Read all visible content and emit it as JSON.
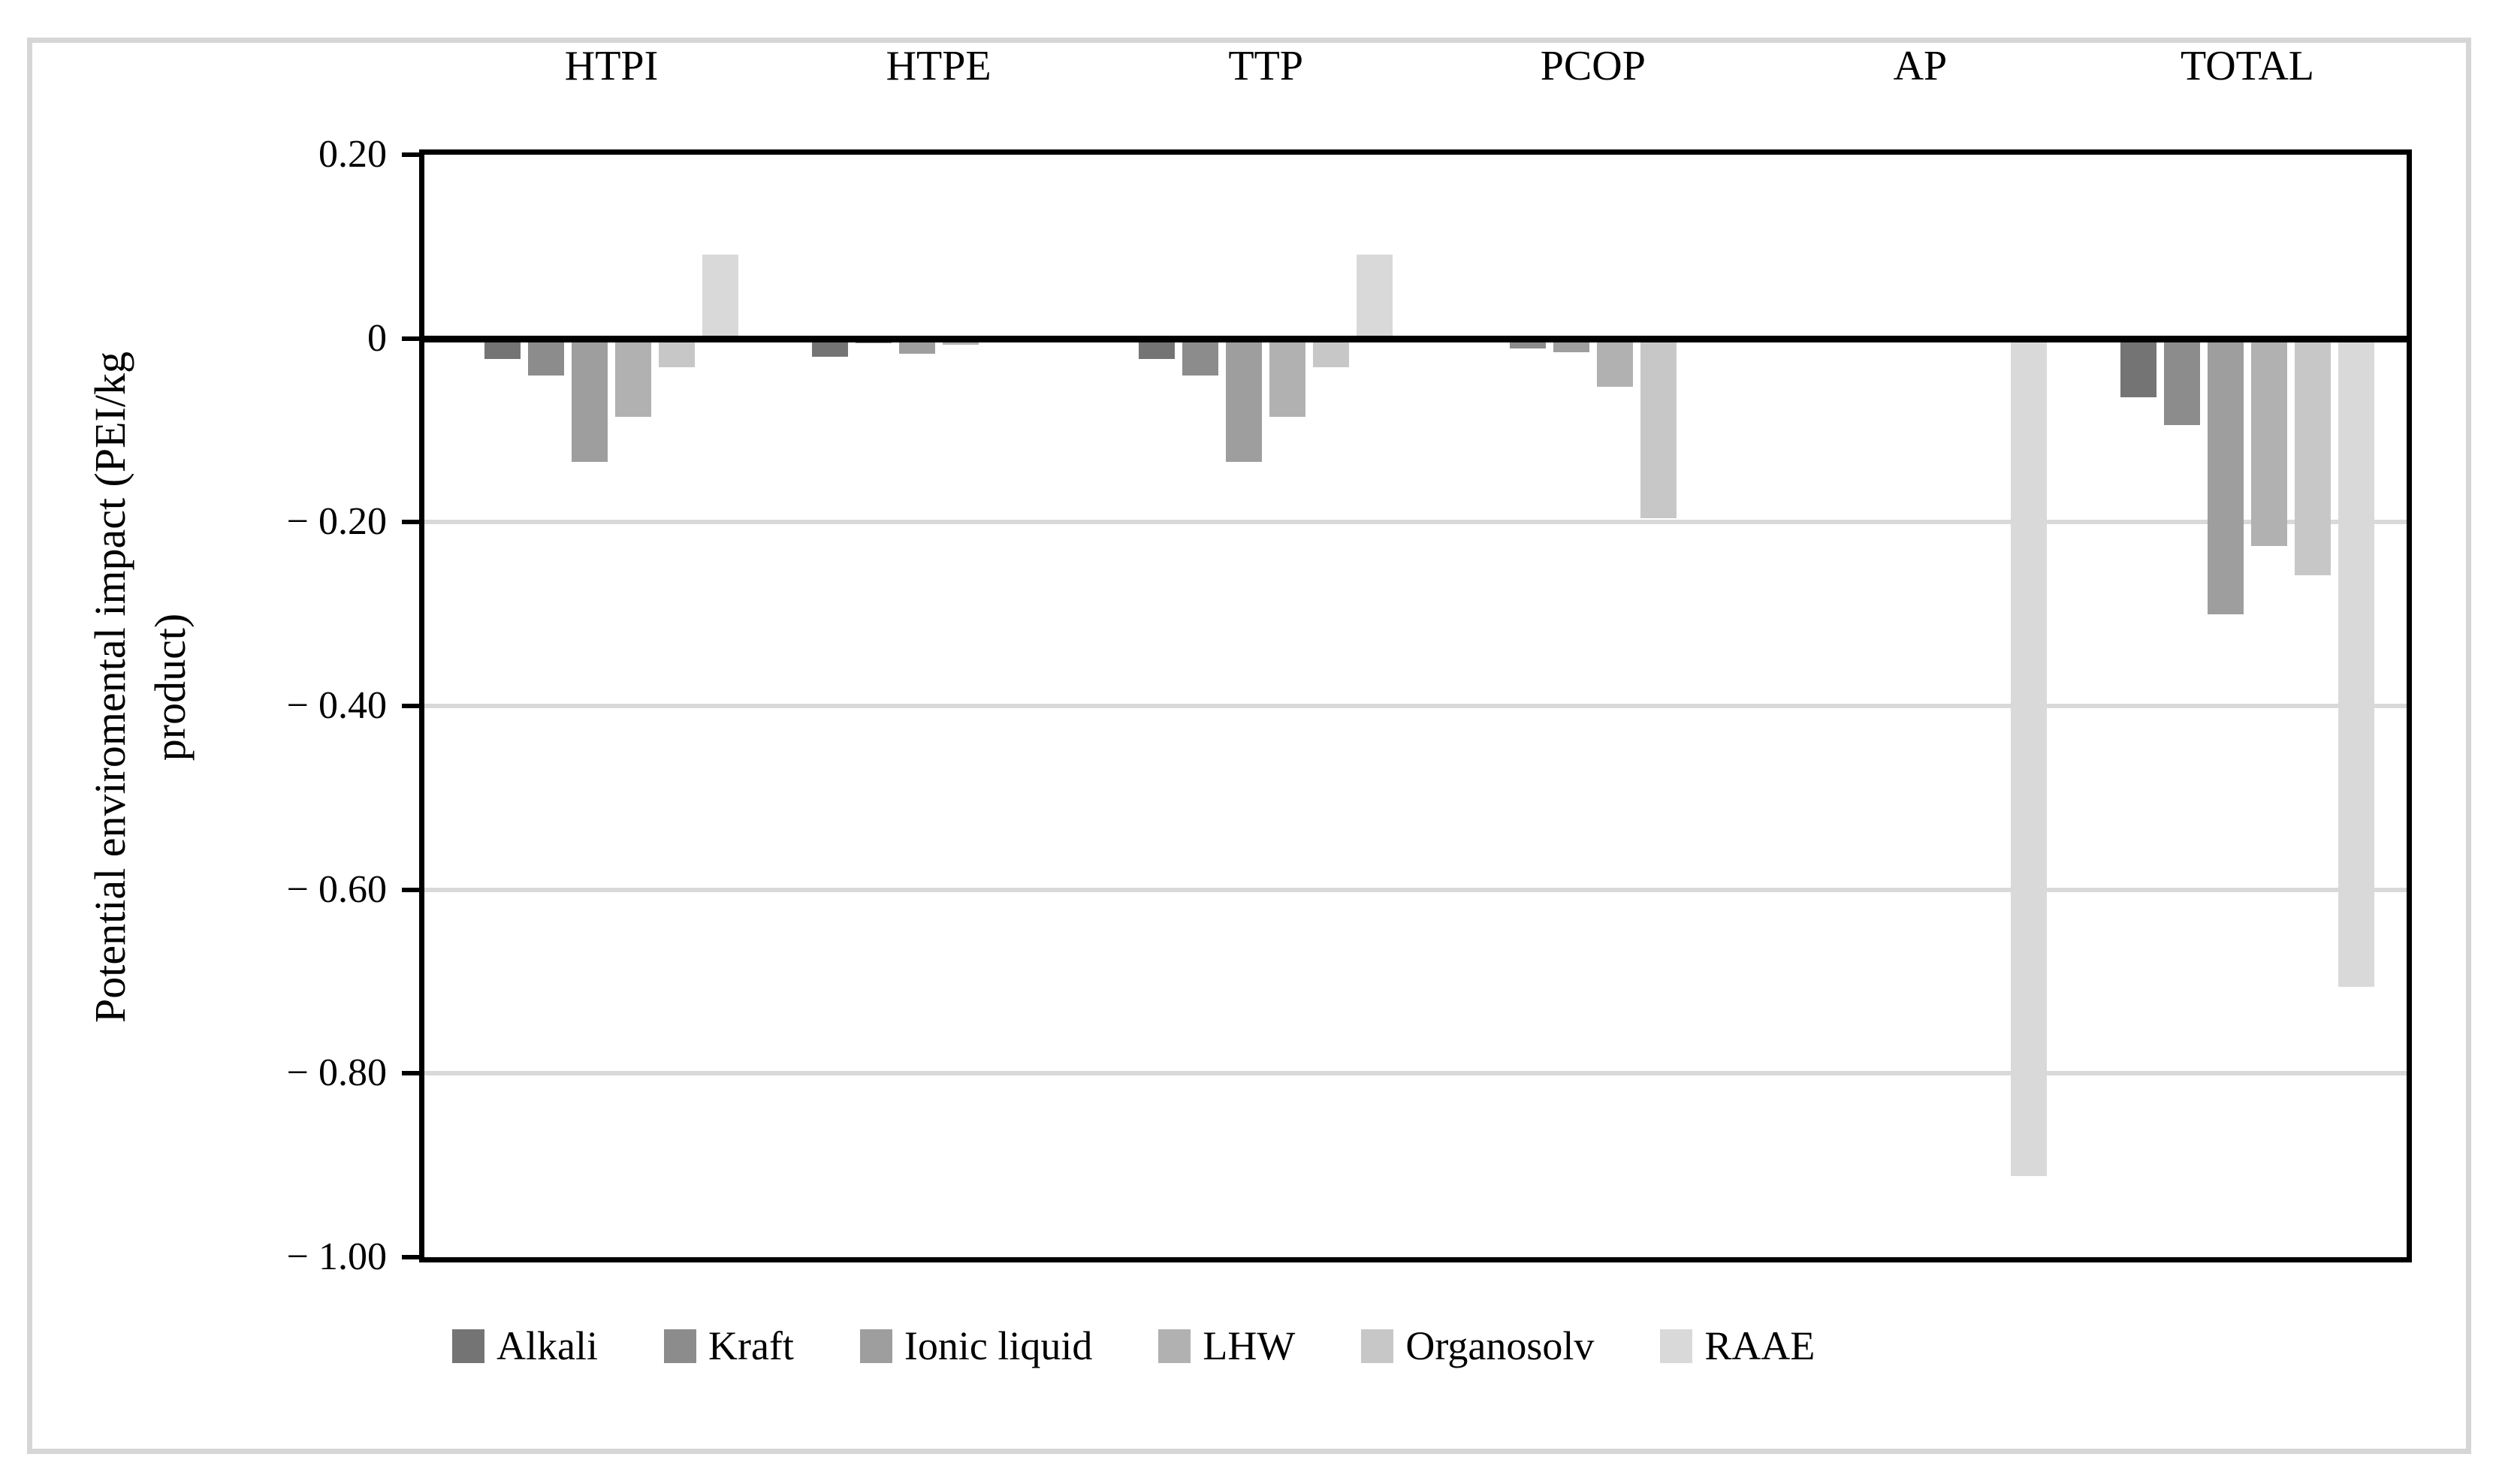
{
  "figure": {
    "background": "#ffffff",
    "frame_color": "#d6d6d6",
    "axis_color": "#000000",
    "gridline_color": "#d9d9d9"
  },
  "chart_data": {
    "type": "bar",
    "title": "",
    "ylabel": "Potential enviromental impact (PEI/kg product)",
    "ylabel_line1": "Potential enviromental impact  (PEI/kg",
    "ylabel_line2": "product)",
    "categories": [
      "HTPI",
      "HTPE",
      "TTP",
      "PCOP",
      "AP",
      "TOTAL"
    ],
    "series": [
      {
        "name": "Alkali",
        "color": "#747474",
        "values": [
          -0.022,
          -0.02,
          -0.022,
          0,
          0,
          -0.064
        ]
      },
      {
        "name": "Kraft",
        "color": "#8c8c8c",
        "values": [
          -0.04,
          -0.005,
          -0.04,
          -0.011,
          0,
          -0.094
        ]
      },
      {
        "name": "Ionic liquid",
        "color": "#9e9e9e",
        "values": [
          -0.134,
          -0.017,
          -0.134,
          -0.015,
          0,
          -0.3
        ]
      },
      {
        "name": "LHW",
        "color": "#b1b1b1",
        "values": [
          -0.085,
          -0.007,
          -0.085,
          -0.053,
          0,
          -0.226
        ]
      },
      {
        "name": "Organosolv",
        "color": "#c7c7c7",
        "values": [
          -0.031,
          0,
          -0.031,
          -0.196,
          0,
          -0.258
        ]
      },
      {
        "name": "RAAE",
        "color": "#d9d9d9",
        "values": [
          0.091,
          -0.004,
          0.091,
          0,
          -0.912,
          -0.706
        ]
      }
    ],
    "y_ticks": [
      {
        "value": 0.2,
        "label": "0.20"
      },
      {
        "value": 0.0,
        "label": "0"
      },
      {
        "value": -0.2,
        "label": "− 0.20"
      },
      {
        "value": -0.4,
        "label": "− 0.40"
      },
      {
        "value": -0.6,
        "label": "− 0.60"
      },
      {
        "value": -0.8,
        "label": "− 0.80"
      },
      {
        "value": -1.0,
        "label": "− 1.00"
      }
    ],
    "ylim": [
      -1.0,
      0.2
    ],
    "grid": "horizontal",
    "legend_position": "bottom"
  }
}
